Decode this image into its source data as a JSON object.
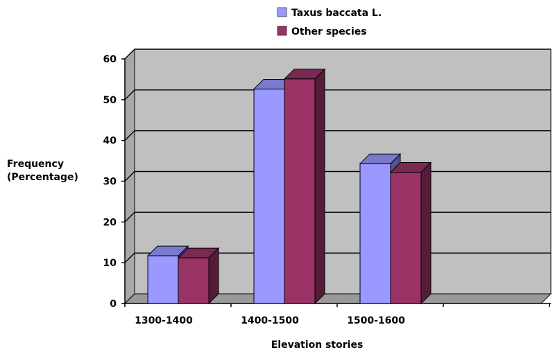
{
  "chart_data": {
    "type": "bar",
    "title": "",
    "xlabel": "Elevation stories",
    "ylabel_lines": [
      "Frequency",
      "(Percentage)"
    ],
    "categories": [
      "1300-1400",
      "1400-1500",
      "1500-1600",
      ""
    ],
    "series": [
      {
        "name": "Taxus baccata L.",
        "values": [
          11.7,
          52.6,
          34.3,
          null
        ],
        "color": "#9999ff"
      },
      {
        "name": "Other species",
        "values": [
          11.2,
          55.1,
          32.2,
          null
        ],
        "color": "#993366"
      }
    ],
    "ylim": [
      0,
      60
    ],
    "yticks": [
      0,
      10,
      20,
      30,
      40,
      50,
      60
    ],
    "grid": true,
    "legend_position": "top-center",
    "three_d": true,
    "wall_color": "#c0c0c0"
  }
}
